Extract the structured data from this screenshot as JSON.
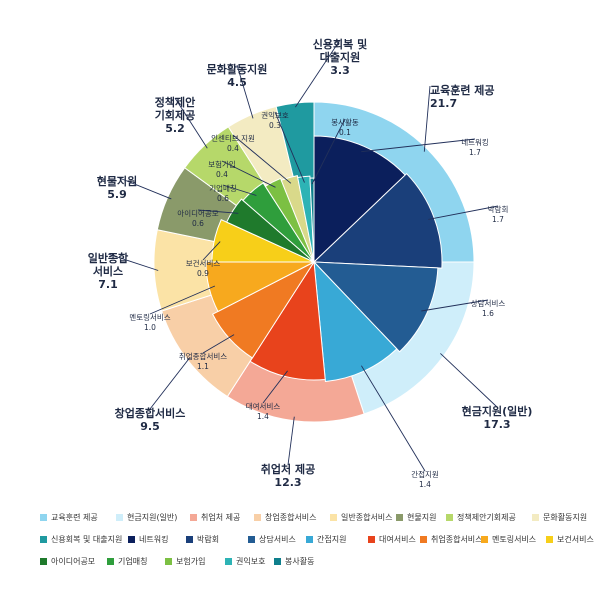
{
  "chart_data": {
    "type": "pie",
    "outer": {
      "series_name": "",
      "categories": [
        "교육훈련 제공",
        "현금지원(일반)",
        "취업처 제공",
        "창업종합서비스",
        "일반종합서비스",
        "현물지원",
        "정책제안기회제공",
        "문화활동지원",
        "신용회복 및 대출지원"
      ],
      "values": [
        21.7,
        17.3,
        12.3,
        9.5,
        7.1,
        5.9,
        5.2,
        4.5,
        3.3
      ],
      "colors": [
        "#8fd5ef",
        "#cfeefa",
        "#f4a896",
        "#f8cfa7",
        "#fbe3a6",
        "#8a9a6a",
        "#b6d86a",
        "#f3ebc2",
        "#1f9aa0"
      ]
    },
    "inner": {
      "categories": [
        "네트워킹",
        "박람회",
        "상담서비스",
        "간접지원",
        "대여서비스",
        "취업종합서비스",
        "멘토링서비스",
        "보건서비스",
        "아이디어공모",
        "기업매칭",
        "보험가입",
        "인센티브 지원",
        "권익보호",
        "봉사활동"
      ],
      "values": [
        1.7,
        1.7,
        1.6,
        1.4,
        1.4,
        1.1,
        1.0,
        0.9,
        0.6,
        0.6,
        0.4,
        0.4,
        0.3,
        0.1
      ],
      "colors": [
        "#0b1f5c",
        "#1a3f7a",
        "#235c93",
        "#38a9d6",
        "#e8431c",
        "#f07a22",
        "#f7a91e",
        "#f7cf19",
        "#1f7a2c",
        "#2f9e3c",
        "#7cc043",
        "#d9d98a",
        "#2db3b5",
        "#0e7f8c"
      ]
    },
    "labels": {
      "outer": [
        {
          "name": "교육훈련 제공",
          "value": "21.7"
        },
        {
          "name": "현금지원(일반)",
          "value": "17.3"
        },
        {
          "name": "취업처 제공",
          "value": "12.3"
        },
        {
          "name": "창업종합서비스",
          "value": "9.5"
        },
        {
          "name": "일반종합\n서비스",
          "value": "7.1"
        },
        {
          "name": "현물지원",
          "value": "5.9"
        },
        {
          "name": "정책제안\n기회제공",
          "value": "5.2"
        },
        {
          "name": "문화활동지원",
          "value": "4.5"
        },
        {
          "name": "신용회복 및\n대출지원",
          "value": "3.3"
        }
      ],
      "inner": [
        {
          "name": "네트워킹",
          "value": "1.7"
        },
        {
          "name": "박람회",
          "value": "1.7"
        },
        {
          "name": "상담서비스",
          "value": "1.6"
        },
        {
          "name": "간접지원",
          "value": "1.4"
        },
        {
          "name": "대여서비스",
          "value": "1.4"
        },
        {
          "name": "취업종합서비스",
          "value": "1.1"
        },
        {
          "name": "멘토링서비스",
          "value": "1.0"
        },
        {
          "name": "보건서비스",
          "value": "0.9"
        },
        {
          "name": "아이디어공모",
          "value": "0.6"
        },
        {
          "name": "기업매칭",
          "value": "0.6"
        },
        {
          "name": "보험가입",
          "value": "0.4"
        },
        {
          "name": "인센티브 지원",
          "value": "0.4"
        },
        {
          "name": "권익보호",
          "value": "0.3"
        },
        {
          "name": "봉사활동",
          "value": "0.1"
        }
      ]
    },
    "legend": {
      "placement": "bottom",
      "items": [
        {
          "label": "교육훈련 제공",
          "color": "#8fd5ef"
        },
        {
          "label": "현금지원(일반)",
          "color": "#cfeefa"
        },
        {
          "label": "취업처 제공",
          "color": "#f4a896"
        },
        {
          "label": "창업종합서비스",
          "color": "#f8cfa7"
        },
        {
          "label": "일반종합서비스",
          "color": "#fbe3a6"
        },
        {
          "label": "현물지원",
          "color": "#8a9a6a"
        },
        {
          "label": "정책제안기회제공",
          "color": "#b6d86a"
        },
        {
          "label": "문화활동지원",
          "color": "#f3ebc2"
        },
        {
          "label": "신용회복 및 대출지원",
          "color": "#1f9aa0"
        },
        {
          "label": "네트워킹",
          "color": "#0b1f5c"
        },
        {
          "label": "박람회",
          "color": "#1a3f7a"
        },
        {
          "label": "상담서비스",
          "color": "#235c93"
        },
        {
          "label": "간접지원",
          "color": "#38a9d6"
        },
        {
          "label": "대여서비스",
          "color": "#e8431c"
        },
        {
          "label": "취업종합서비스",
          "color": "#f07a22"
        },
        {
          "label": "멘토링서비스",
          "color": "#f7a91e"
        },
        {
          "label": "보건서비스",
          "color": "#f7cf19"
        },
        {
          "label": "아이디어공모",
          "color": "#1f7a2c"
        },
        {
          "label": "기업매칭",
          "color": "#2f9e3c"
        },
        {
          "label": "보험가입",
          "color": "#7cc043"
        },
        {
          "label": "권익보호",
          "color": "#2db3b5"
        },
        {
          "label": "봉사활동",
          "color": "#0e7f8c"
        }
      ]
    }
  }
}
